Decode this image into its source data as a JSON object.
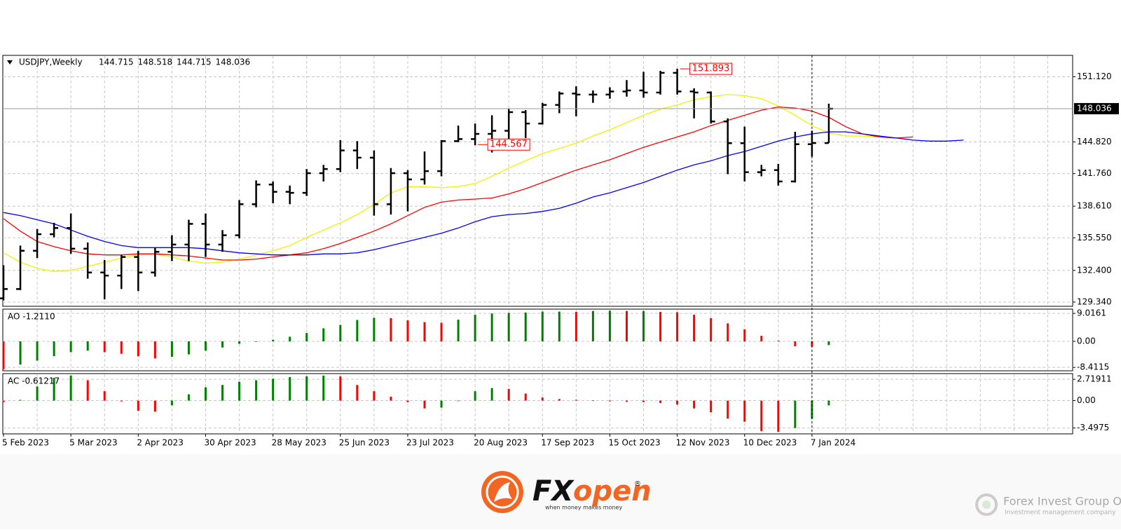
{
  "chart_data": {
    "type": "ohlc",
    "symbol": "USDJPY,Weekly",
    "categories": [
      "5 Feb 2023",
      null,
      null,
      null,
      "5 Mar 2023",
      null,
      null,
      null,
      "2 Apr 2023",
      null,
      null,
      null,
      "30 Apr 2023",
      null,
      null,
      null,
      "28 May 2023",
      null,
      null,
      null,
      "25 Jun 2023",
      null,
      null,
      null,
      "23 Jul 2023",
      null,
      null,
      null,
      "20 Aug 2023",
      null,
      null,
      null,
      "17 Sep 2023",
      null,
      null,
      null,
      "15 Oct 2023",
      null,
      null,
      null,
      "12 Nov 2023",
      null,
      null,
      null,
      "10 Dec 2023",
      null,
      null,
      null,
      "7 Jan 2024",
      null,
      null,
      null,
      null,
      null,
      null,
      null,
      null,
      null
    ],
    "bars": {
      "color": "#000000",
      "open": [
        129.7,
        130.6,
        134.3,
        135.9,
        136.5,
        134.5,
        132.2,
        131.9,
        133.7,
        132.2,
        134.2,
        134.9,
        136.9,
        134.9,
        135.8,
        138.8,
        140.7,
        140.0,
        139.9,
        141.8,
        142.2,
        144.0,
        143.3,
        138.8,
        141.8,
        141.2,
        142.0,
        144.9,
        145.1,
        145.6,
        145.9,
        147.7,
        146.6,
        148.4,
        149.5,
        149.4,
        149.4,
        149.7,
        149.8,
        149.6,
        151.5,
        149.7,
        149.6,
        146.8,
        144.7,
        141.9,
        142.1,
        141.0,
        144.6,
        144.715,
        null,
        null,
        null,
        null,
        null,
        null,
        null,
        null
      ],
      "high": [
        132.9,
        134.8,
        136.4,
        137.0,
        137.9,
        135.1,
        133.4,
        133.9,
        134.3,
        134.6,
        135.8,
        137.3,
        137.9,
        136.3,
        139.2,
        141.1,
        141.0,
        140.6,
        142.2,
        142.6,
        145.0,
        144.9,
        144.0,
        142.3,
        142.1,
        143.9,
        145.0,
        146.4,
        146.6,
        147.4,
        148.0,
        147.9,
        148.6,
        149.7,
        150.2,
        149.8,
        150.1,
        150.8,
        151.6,
        151.7,
        151.893,
        150.0,
        149.7,
        147.1,
        146.3,
        142.6,
        142.7,
        145.8,
        145.9,
        148.518,
        null,
        null,
        null,
        null,
        null,
        null,
        null,
        null
      ],
      "low": [
        129.5,
        130.5,
        133.6,
        135.6,
        134.0,
        131.6,
        129.6,
        130.6,
        130.4,
        131.8,
        133.3,
        133.3,
        133.7,
        134.2,
        135.5,
        138.5,
        138.9,
        138.8,
        139.6,
        141.0,
        141.9,
        142.2,
        137.7,
        137.8,
        138.1,
        140.7,
        141.5,
        144.8,
        144.5,
        143.8,
        144.7,
        145.2,
        146.5,
        147.6,
        147.3,
        148.6,
        149.0,
        149.2,
        149.1,
        149.4,
        149.4,
        147.1,
        146.6,
        141.7,
        141.0,
        141.5,
        140.6,
        140.9,
        143.4,
        144.715,
        null,
        null,
        null,
        null,
        null,
        null,
        null,
        null
      ],
      "close": [
        130.6,
        134.3,
        135.9,
        136.5,
        134.5,
        132.2,
        131.9,
        133.7,
        132.2,
        134.2,
        134.9,
        136.9,
        134.9,
        135.8,
        138.8,
        140.7,
        140.0,
        139.9,
        141.8,
        142.2,
        144.0,
        143.3,
        138.8,
        141.8,
        141.2,
        142.0,
        144.9,
        145.1,
        145.6,
        145.9,
        147.7,
        146.6,
        148.4,
        149.5,
        149.4,
        149.4,
        149.7,
        149.8,
        149.6,
        151.5,
        149.7,
        149.6,
        146.8,
        144.7,
        141.9,
        142.1,
        141.0,
        144.6,
        144.715,
        148.036,
        null,
        null,
        null,
        null,
        null,
        null,
        null,
        null
      ]
    },
    "moving_averages": [
      {
        "color": "#f2f200",
        "values": [
          134.1,
          133.2,
          132.6,
          132.3,
          132.4,
          132.8,
          133.2,
          133.6,
          133.9,
          134.0,
          133.7,
          133.3,
          133.1,
          133.2,
          133.5,
          133.9,
          134.3,
          134.8,
          135.6,
          136.3,
          137.0,
          137.8,
          138.8,
          139.9,
          140.5,
          140.5,
          140.4,
          140.5,
          140.8,
          141.5,
          142.3,
          143.0,
          143.7,
          144.2,
          144.7,
          145.4,
          146.0,
          146.7,
          147.4,
          148.0,
          148.4,
          148.9,
          149.2,
          149.4,
          149.3,
          149.0,
          148.3,
          147.4,
          146.4,
          145.7,
          145.4,
          145.4,
          145.3,
          145.2,
          null,
          null,
          null,
          null
        ]
      },
      {
        "color": "#ff0000",
        "values": [
          137.4,
          136.2,
          135.2,
          134.7,
          134.3,
          134.0,
          133.9,
          133.9,
          134.0,
          134.0,
          133.9,
          133.8,
          133.6,
          133.4,
          133.4,
          133.5,
          133.7,
          133.9,
          134.1,
          134.5,
          135.0,
          135.6,
          136.2,
          136.9,
          137.7,
          138.5,
          139.0,
          139.2,
          139.3,
          139.4,
          139.8,
          140.3,
          140.9,
          141.5,
          142.1,
          142.6,
          143.1,
          143.7,
          144.3,
          144.8,
          145.3,
          145.8,
          146.4,
          146.9,
          147.4,
          147.9,
          148.2,
          148.1,
          147.8,
          147.2,
          146.3,
          145.6,
          145.3,
          145.2,
          145.3,
          null,
          null,
          null
        ]
      },
      {
        "color": "#0000ff",
        "values": [
          138.0,
          137.7,
          137.3,
          136.9,
          136.3,
          135.7,
          135.2,
          134.8,
          134.6,
          134.6,
          134.6,
          134.6,
          134.5,
          134.3,
          134.1,
          134.0,
          133.9,
          133.9,
          133.9,
          134.0,
          134.0,
          134.1,
          134.4,
          134.8,
          135.2,
          135.6,
          136.0,
          136.5,
          137.1,
          137.6,
          137.8,
          137.9,
          138.1,
          138.4,
          138.9,
          139.5,
          139.9,
          140.4,
          140.9,
          141.5,
          142.1,
          142.6,
          143.0,
          143.5,
          143.9,
          144.4,
          144.9,
          145.3,
          145.6,
          145.8,
          145.8,
          145.6,
          145.4,
          145.2,
          145.0,
          144.9,
          144.9,
          145.0
        ]
      }
    ],
    "ylim": [
      128.93,
      153.19
    ],
    "yticks": [
      {
        "value": 151.12,
        "label": "151.120"
      },
      {
        "value": 144.82,
        "label": "144.820"
      },
      {
        "value": 141.76,
        "label": "141.760"
      },
      {
        "value": 138.61,
        "label": "138.610"
      },
      {
        "value": 135.55,
        "label": "135.550"
      },
      {
        "value": 132.4,
        "label": "132.400"
      },
      {
        "value": 129.34,
        "label": "129.340"
      }
    ],
    "grid": true,
    "annotations": [
      151.893,
      144.567
    ],
    "annotation_color": "#ff0000",
    "indicators": [
      {
        "type": "histogram",
        "label": "AO -1.2110",
        "up_color": "#008000",
        "down_color": "#ff0000",
        "ylim": [
          -9.5,
          10.4
        ],
        "yticks": [
          9.0161,
          {
            "value": 0,
            "label": "0.00"
          },
          -8.4115
        ],
        "values": [
          -9.0,
          -7.5,
          -6.2,
          -4.8,
          -3.5,
          -3.0,
          -3.5,
          -4.0,
          -4.8,
          -5.5,
          -5.0,
          -4.2,
          -3.0,
          -2.0,
          -0.8,
          -0.1,
          0.5,
          1.5,
          2.7,
          4.2,
          5.3,
          6.9,
          7.6,
          7.5,
          6.8,
          6.2,
          6.0,
          7.0,
          8.6,
          9.0,
          9.2,
          9.3,
          9.6,
          9.6,
          9.5,
          9.8,
          9.9,
          9.8,
          9.8,
          9.5,
          9.4,
          8.6,
          7.5,
          5.8,
          3.9,
          1.8,
          0.2,
          -1.6,
          -1.7,
          -1.211,
          null,
          null,
          null,
          null,
          null,
          null,
          null,
          null
        ]
      },
      {
        "type": "histogram",
        "label": "AC -0.61217",
        "up_color": "#008000",
        "down_color": "#ff0000",
        "ylim": [
          -4.25,
          3.45
        ],
        "yticks": [
          2.71911,
          {
            "value": 0,
            "label": "0.00"
          },
          -3.4975
        ],
        "values": [
          -0.2,
          0.1,
          1.8,
          2.9,
          3.2,
          2.6,
          1.2,
          -0.1,
          -1.3,
          -1.4,
          -0.6,
          0.8,
          1.7,
          2.0,
          2.4,
          2.6,
          2.8,
          3.0,
          3.1,
          3.2,
          3.1,
          2.0,
          1.2,
          0.5,
          -0.2,
          -1.0,
          -0.9,
          0.0,
          1.2,
          1.6,
          1.5,
          0.9,
          0.4,
          0.2,
          0.1,
          0.05,
          -0.1,
          -0.15,
          -0.2,
          -0.3,
          -0.5,
          -1.0,
          -1.5,
          -2.3,
          -2.7,
          -3.9,
          -4.0,
          -3.5,
          -2.3,
          -0.61217,
          null,
          null,
          null,
          null,
          null,
          null,
          null,
          null
        ]
      }
    ]
  },
  "branding": {
    "logo_prefix": "FX",
    "logo_suffix": "open",
    "registered": "®",
    "tagline": "when money makes money",
    "watermark": "Forex Invest Group OU",
    "watermark_tagline": "Investment management company"
  }
}
